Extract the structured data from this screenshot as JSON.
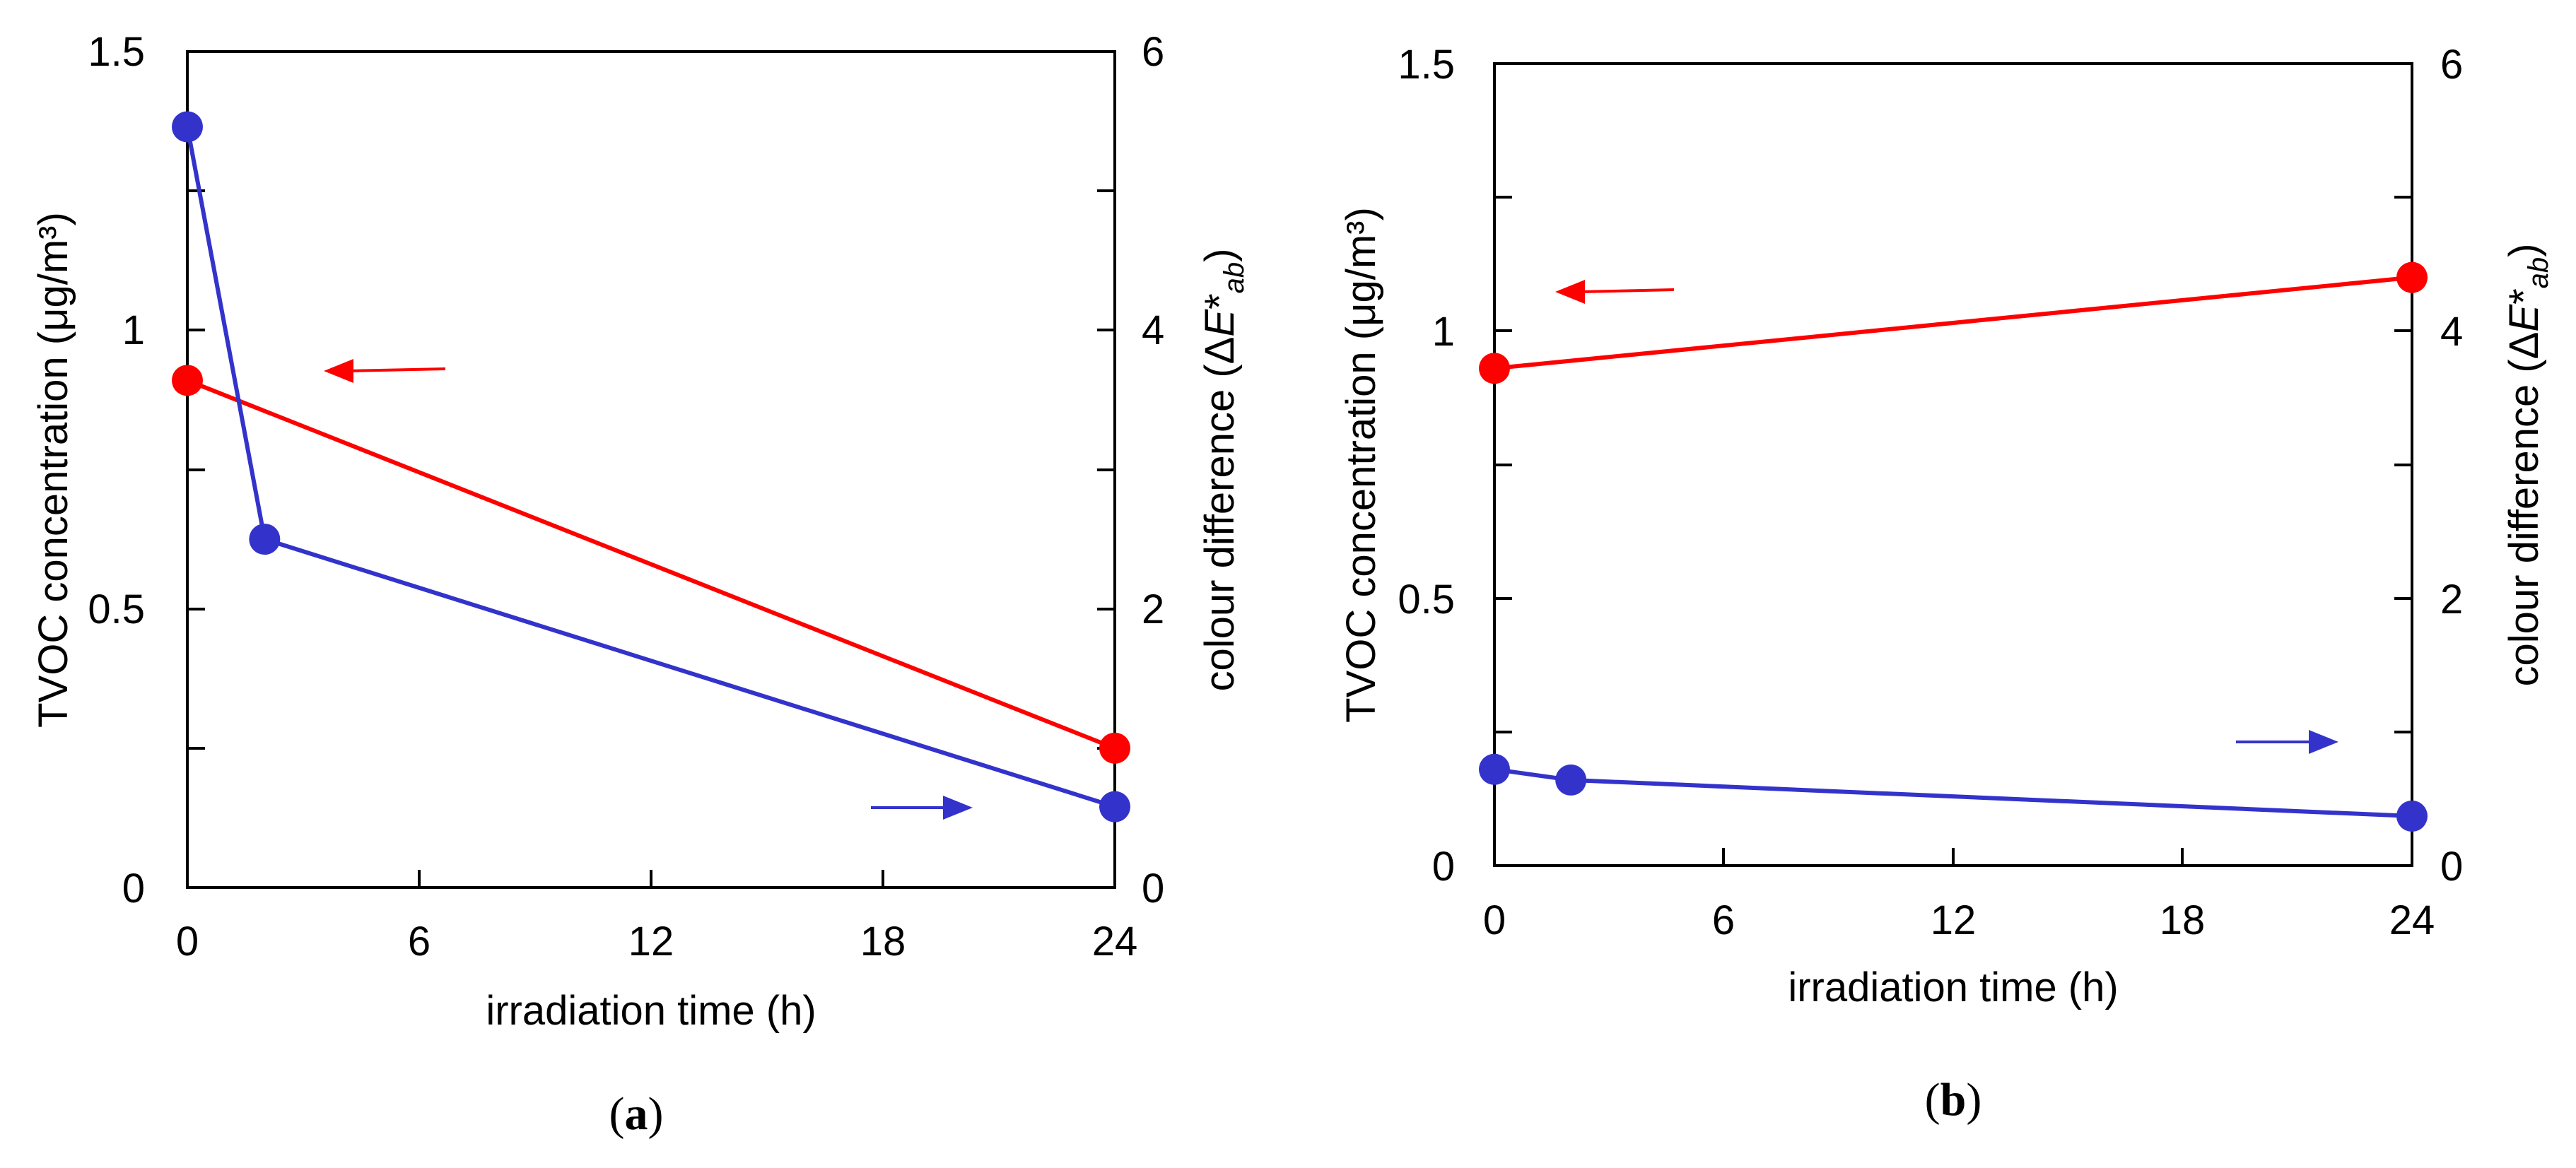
{
  "chart_data": [
    {
      "type": "line",
      "panel_label": "a",
      "x": [
        0,
        2,
        24
      ],
      "xlabel": "irradiation time (h)",
      "xlim": [
        0,
        24
      ],
      "xticks": [
        "0",
        "6",
        "12",
        "18",
        "24"
      ],
      "ylabel_left": "TVOC concentration (μg/m³)",
      "ylim_left": [
        0,
        1.5
      ],
      "yticks_left": [
        "0",
        "0.5",
        "1",
        "1.5"
      ],
      "ylabel_right": "colour difference (ΔE*ab)",
      "ylim_right": [
        0,
        6
      ],
      "yticks_right": [
        "0",
        "2",
        "4",
        "6"
      ],
      "series": [
        {
          "name": "TVOC concentration",
          "axis": "left",
          "color": "#ff0000",
          "x": [
            0,
            24
          ],
          "values": [
            0.91,
            0.25
          ]
        },
        {
          "name": "colour difference",
          "axis": "right",
          "color": "#3333cc",
          "x": [
            0,
            2,
            24
          ],
          "values": [
            5.46,
            2.5,
            0.58
          ]
        }
      ],
      "annotations": [
        {
          "type": "arrow",
          "direction": "left",
          "color": "#ff0000",
          "refers_to": "TVOC concentration"
        },
        {
          "type": "arrow",
          "direction": "right",
          "color": "#3333cc",
          "refers_to": "colour difference"
        }
      ]
    },
    {
      "type": "line",
      "panel_label": "b",
      "x": [
        0,
        2,
        24
      ],
      "xlabel": "irradiation time (h)",
      "xlim": [
        0,
        24
      ],
      "xticks": [
        "0",
        "6",
        "12",
        "18",
        "24"
      ],
      "ylabel_left": "TVOC concentration (μg/m³)",
      "ylim_left": [
        0,
        1.5
      ],
      "yticks_left": [
        "0",
        "0.5",
        "1",
        "1.5"
      ],
      "ylabel_right": "colour difference (ΔE*ab)",
      "ylim_right": [
        0,
        6
      ],
      "yticks_right": [
        "0",
        "2",
        "4",
        "6"
      ],
      "series": [
        {
          "name": "TVOC concentration",
          "axis": "left",
          "color": "#ff0000",
          "x": [
            0,
            24
          ],
          "values": [
            0.93,
            1.1
          ]
        },
        {
          "name": "colour difference",
          "axis": "right",
          "color": "#3333cc",
          "x": [
            0,
            2,
            24
          ],
          "values": [
            0.72,
            0.64,
            0.37
          ]
        }
      ],
      "annotations": [
        {
          "type": "arrow",
          "direction": "left",
          "color": "#ff0000",
          "refers_to": "TVOC concentration"
        },
        {
          "type": "arrow",
          "direction": "right",
          "color": "#3333cc",
          "refers_to": "colour difference"
        }
      ]
    }
  ]
}
